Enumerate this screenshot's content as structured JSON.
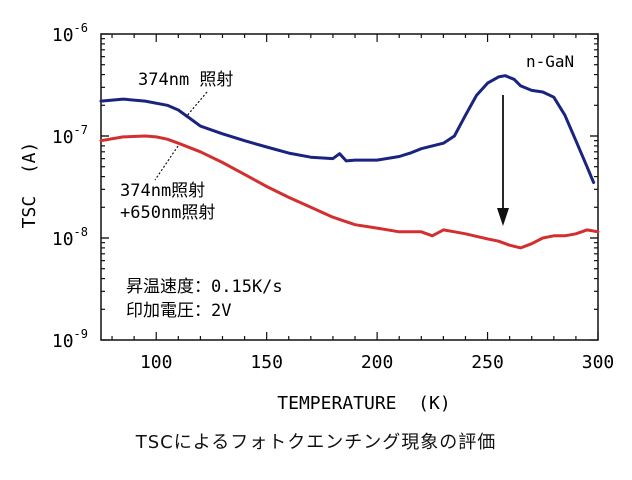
{
  "chart_data": {
    "type": "line",
    "title": "",
    "xlabel": "TEMPERATURE  (K)",
    "ylabel": "TSC  (A)",
    "xlim": [
      75,
      300
    ],
    "ylim": [
      1e-09,
      1e-06
    ],
    "yscale": "log",
    "grid": false,
    "x_ticks": [
      100,
      150,
      200,
      250,
      300
    ],
    "y_ticks": [
      {
        "value": 1e-09,
        "base": "10",
        "exp": "-9"
      },
      {
        "value": 1e-08,
        "base": "10",
        "exp": "-8"
      },
      {
        "value": 1e-07,
        "base": "10",
        "exp": "-7"
      },
      {
        "value": 1e-06,
        "base": "10",
        "exp": "-6"
      }
    ],
    "series": [
      {
        "color": "#1a237e",
        "x": [
          75,
          85,
          95,
          105,
          110,
          115,
          120,
          130,
          140,
          150,
          160,
          170,
          180,
          183,
          186,
          190,
          200,
          210,
          215,
          220,
          225,
          230,
          235,
          240,
          245,
          250,
          255,
          258,
          262,
          265,
          270,
          275,
          280,
          285,
          290,
          295,
          298
        ],
        "y": [
          2.2e-07,
          2.3e-07,
          2.2e-07,
          2e-07,
          1.8e-07,
          1.5e-07,
          1.25e-07,
          1.05e-07,
          9e-08,
          7.8e-08,
          6.8e-08,
          6.2e-08,
          6e-08,
          6.7e-08,
          5.7e-08,
          5.8e-08,
          5.8e-08,
          6.3e-08,
          6.8e-08,
          7.5e-08,
          8e-08,
          8.5e-08,
          1e-07,
          1.6e-07,
          2.5e-07,
          3.3e-07,
          3.8e-07,
          3.9e-07,
          3.6e-07,
          3.1e-07,
          2.8e-07,
          2.7e-07,
          2.4e-07,
          1.6e-07,
          9e-08,
          5e-08,
          3.5e-08
        ]
      },
      {
        "color": "#d32f2f",
        "x": [
          75,
          85,
          95,
          100,
          105,
          110,
          120,
          130,
          140,
          150,
          160,
          170,
          180,
          190,
          200,
          210,
          220,
          225,
          230,
          235,
          240,
          250,
          255,
          260,
          265,
          270,
          275,
          280,
          285,
          290,
          295,
          300
        ],
        "y": [
          9e-08,
          9.8e-08,
          1e-07,
          9.8e-08,
          9.3e-08,
          8.5e-08,
          7e-08,
          5.5e-08,
          4.2e-08,
          3.2e-08,
          2.5e-08,
          2e-08,
          1.6e-08,
          1.35e-08,
          1.25e-08,
          1.15e-08,
          1.15e-08,
          1.05e-08,
          1.2e-08,
          1.15e-08,
          1.1e-08,
          9.8e-09,
          9.3e-09,
          8.5e-09,
          8e-09,
          8.8e-09,
          1e-08,
          1.05e-08,
          1.05e-08,
          1.1e-08,
          1.2e-08,
          1.15e-08
        ]
      }
    ],
    "annotations": {
      "material": "n-GaN",
      "blue_label": "374nm 照射",
      "red_label_line1": "374nm照射",
      "red_label_line2": "+650nm照射",
      "condition_line1": "昇温速度：0.15K/s",
      "condition_line2": "印加電圧：2V"
    }
  },
  "caption": "TSCによるフォトクエンチング現象の評価"
}
